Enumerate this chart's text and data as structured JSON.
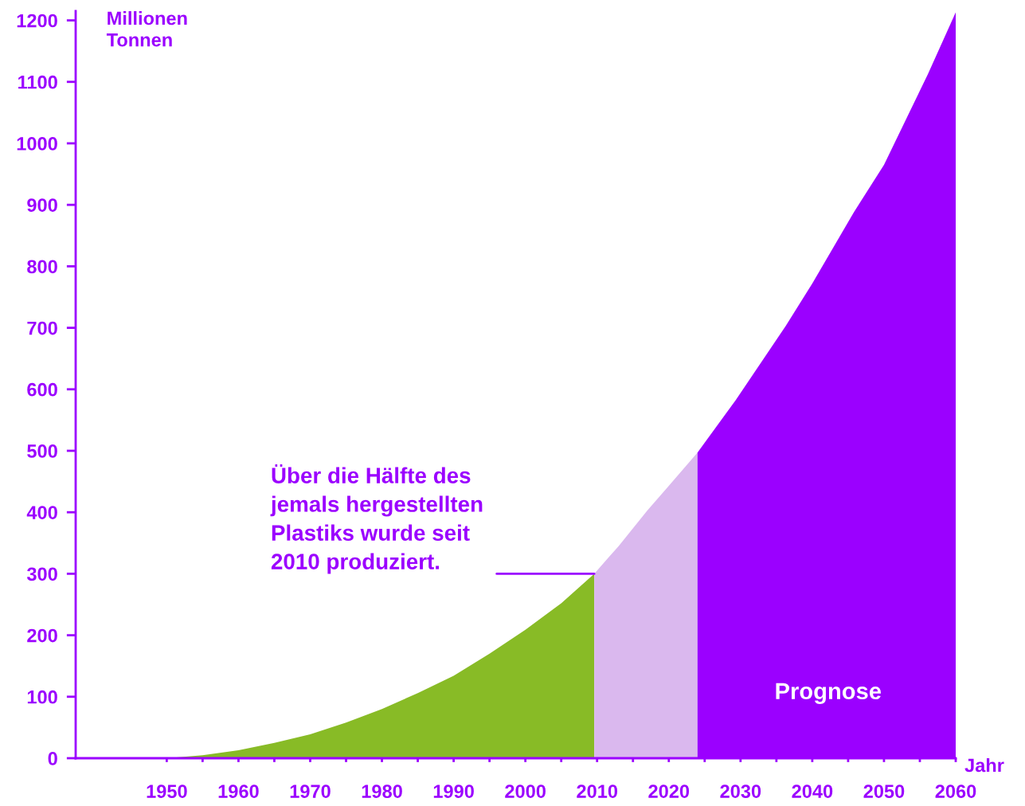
{
  "chart_data": {
    "type": "area",
    "xlabel": "Jahr",
    "ylabel": "Millionen\nTonnen",
    "series": [
      {
        "color": "#88bb26",
        "x": [
          1950,
          1955,
          1960,
          1965,
          1970,
          1975,
          1980,
          1985,
          1990,
          1995,
          2000,
          2005,
          2009.6
        ],
        "values": [
          0,
          5,
          13,
          25,
          39,
          58,
          80,
          106,
          134,
          170,
          209,
          252,
          300
        ]
      },
      {
        "color": "#dab8ee",
        "x": [
          2009.6,
          2013,
          2017,
          2020,
          2024
        ],
        "values": [
          300,
          345,
          403,
          443,
          497
        ]
      },
      {
        "color": "#9b00ff",
        "x": [
          2024,
          2029.3,
          2036.3,
          2040,
          2045.8,
          2050,
          2056.1,
          2060
        ],
        "values": [
          497,
          582,
          703,
          772,
          888,
          965,
          1112,
          1213
        ]
      }
    ],
    "xlim": [
      1937.3,
      2060
    ],
    "xticks": [
      1950,
      {
        "value": 1955,
        "label": null
      },
      1960,
      {
        "value": 1965,
        "label": null
      },
      1970,
      {
        "value": 1975,
        "label": null
      },
      1980,
      {
        "value": 1985,
        "label": null
      },
      1990,
      {
        "value": 1995,
        "label": null
      },
      2000,
      {
        "value": 2005,
        "label": null
      },
      2010,
      {
        "value": 2015,
        "label": null
      },
      2020,
      {
        "value": 2025,
        "label": null
      },
      2030,
      {
        "value": 2035,
        "label": null
      },
      2040,
      {
        "value": 2045,
        "label": null
      },
      2050,
      {
        "value": 2055,
        "label": null
      },
      2060
    ],
    "ylim": [
      0,
      1215
    ],
    "yticks": [
      0,
      100,
      200,
      300,
      400,
      500,
      600,
      700,
      800,
      900,
      1000,
      1100,
      1200
    ],
    "annotations": [
      {
        "text": "Über die Hälfte des\njemals hergestellten\nPlastiks wurde seit\n2010 produziert.",
        "x": 2009.6,
        "y": 300
      },
      "Prognose"
    ],
    "grid": false,
    "legend": false
  }
}
